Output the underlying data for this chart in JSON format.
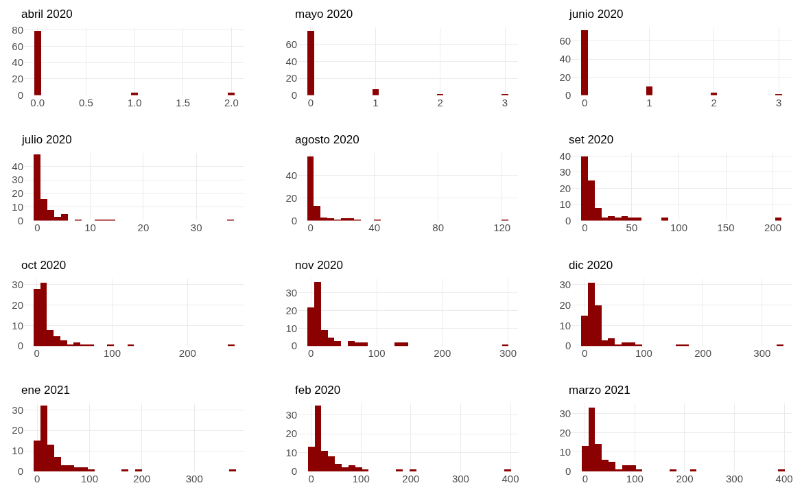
{
  "chart_data": [
    {
      "type": "histogram",
      "title": "abril 2020",
      "color": "#8b0000",
      "grid": true,
      "bins": [
        -0.035,
        0.035,
        0.965,
        1.035,
        1.965,
        2.035
      ],
      "values": [
        79,
        0,
        3,
        0,
        3
      ],
      "xlim": [
        -0.14,
        2.13
      ],
      "xticks": [
        {
          "value": 0,
          "label": "0.0"
        },
        {
          "value": 0.5,
          "label": "0.5"
        },
        {
          "value": 1,
          "label": "1.0"
        },
        {
          "value": 1.5,
          "label": "1.5"
        },
        {
          "value": 2,
          "label": "2.0"
        }
      ],
      "ylim": [
        0,
        83
      ],
      "yticks": [
        0,
        20,
        40,
        60,
        80
      ]
    },
    {
      "type": "histogram",
      "title": "mayo 2020",
      "color": "#8b0000",
      "grid": true,
      "bins": [
        -0.05,
        0.05,
        0.95,
        1.05,
        1.95,
        2.05,
        2.95,
        3.05
      ],
      "values": [
        76,
        0,
        7,
        0,
        1,
        0,
        1
      ],
      "xlim": [
        -0.2,
        3.2
      ],
      "xticks": [
        0,
        1,
        2,
        3
      ],
      "ylim": [
        0,
        80
      ],
      "yticks": [
        0,
        20,
        40,
        60
      ]
    },
    {
      "type": "histogram",
      "title": "junio 2020",
      "color": "#8b0000",
      "grid": true,
      "bins": [
        -0.05,
        0.05,
        0.95,
        1.05,
        1.95,
        2.05,
        2.95,
        3.05
      ],
      "values": [
        72,
        0,
        10,
        0,
        3,
        0,
        1
      ],
      "xlim": [
        -0.2,
        3.2
      ],
      "xticks": [
        0,
        1,
        2,
        3
      ],
      "ylim": [
        0,
        75
      ],
      "yticks": [
        0,
        20,
        40,
        60
      ]
    },
    {
      "type": "histogram",
      "title": "julio 2020",
      "color": "#8b0000",
      "grid": true,
      "bins": [
        -0.64,
        0.64,
        1.92,
        3.2,
        4.48,
        5.76,
        7.04,
        8.32,
        10.88,
        12.16,
        13.44,
        14.72,
        35.84,
        37.12
      ],
      "values": [
        49,
        16,
        8,
        3,
        5,
        0,
        1,
        0,
        1,
        1,
        1,
        0,
        1
      ],
      "xlim": [
        -2.5,
        39
      ],
      "xticks": [
        0,
        10,
        20,
        30
      ],
      "ylim": [
        0,
        50
      ],
      "yticks": [
        0,
        10,
        20,
        30,
        40
      ]
    },
    {
      "type": "histogram",
      "title": "agosto 2020",
      "color": "#8b0000",
      "grid": true,
      "bins": [
        -2.1,
        2.1,
        6.3,
        10.5,
        14.7,
        18.9,
        23.1,
        27.3,
        31.5,
        39.9,
        44.1,
        119.7,
        123.9
      ],
      "values": [
        57,
        13,
        3,
        2,
        1,
        2,
        2,
        1,
        0,
        1,
        0,
        1
      ],
      "xlim": [
        -8,
        130
      ],
      "xticks": [
        0,
        40,
        80,
        120
      ],
      "ylim": [
        0,
        60
      ],
      "yticks": [
        0,
        20,
        40
      ]
    },
    {
      "type": "histogram",
      "title": "set 2020",
      "color": "#8b0000",
      "grid": true,
      "bins": [
        -3.55,
        3.55,
        10.65,
        17.75,
        24.85,
        31.95,
        39.05,
        46.15,
        53.25,
        60.35,
        81.65,
        88.75,
        202.35,
        209.45
      ],
      "values": [
        40,
        25,
        8,
        2,
        3,
        2,
        3,
        2,
        2,
        0,
        2,
        0,
        2
      ],
      "xlim": [
        -14,
        220
      ],
      "xticks": [
        0,
        50,
        100,
        150,
        200
      ],
      "ylim": [
        0,
        42
      ],
      "yticks": [
        0,
        10,
        20,
        30,
        40
      ]
    },
    {
      "type": "histogram",
      "title": "oct 2020",
      "color": "#8b0000",
      "grid": true,
      "bins": [
        -4.45,
        4.45,
        13.35,
        22.25,
        31.15,
        40.05,
        48.95,
        57.85,
        66.75,
        75.65,
        93.45,
        102.35,
        120.15,
        129.05,
        253.55,
        262.45
      ],
      "values": [
        28,
        31,
        8,
        5,
        3,
        1,
        2,
        1,
        1,
        0,
        1,
        0,
        1,
        0,
        1
      ],
      "xlim": [
        -17,
        275
      ],
      "xticks": [
        0,
        100,
        200
      ],
      "ylim": [
        0,
        33
      ],
      "yticks": [
        0,
        10,
        20,
        30
      ]
    },
    {
      "type": "histogram",
      "title": "nov 2020",
      "color": "#8b0000",
      "grid": true,
      "bins": [
        -5.1,
        5.1,
        15.3,
        25.5,
        35.7,
        45.9,
        56.1,
        66.3,
        76.5,
        86.7,
        127.5,
        137.7,
        147.9,
        290.7,
        300.9
      ],
      "values": [
        22,
        36,
        9,
        5,
        3,
        0,
        3,
        2,
        2,
        0,
        2,
        2,
        0,
        1
      ],
      "xlim": [
        -20,
        315
      ],
      "xticks": [
        0,
        100,
        200,
        300
      ],
      "ylim": [
        0,
        38
      ],
      "yticks": [
        0,
        10,
        20,
        30
      ]
    },
    {
      "type": "histogram",
      "title": "dic 2020",
      "color": "#8b0000",
      "grid": true,
      "bins": [
        -5.7,
        5.7,
        17.1,
        28.5,
        39.9,
        51.3,
        62.7,
        74.1,
        85.5,
        96.9,
        153.9,
        165.3,
        176.7,
        324.9,
        336.3
      ],
      "values": [
        15,
        31,
        20,
        3,
        4,
        1,
        2,
        2,
        1,
        0,
        1,
        1,
        0,
        1
      ],
      "xlim": [
        -22,
        350
      ],
      "xticks": [
        0,
        100,
        200,
        300
      ],
      "ylim": [
        0,
        33
      ],
      "yticks": [
        0,
        10,
        20,
        30
      ]
    },
    {
      "type": "histogram",
      "title": "ene 2021",
      "color": "#8b0000",
      "grid": true,
      "bins": [
        -6.45,
        6.45,
        19.35,
        32.25,
        45.15,
        58.05,
        70.95,
        83.85,
        96.75,
        109.65,
        161.25,
        174.15,
        187.05,
        199.95,
        367.05,
        379.95
      ],
      "values": [
        15,
        32,
        13,
        7,
        3,
        3,
        2,
        2,
        1,
        0,
        1,
        0,
        1,
        0,
        1
      ],
      "xlim": [
        -25,
        395
      ],
      "xticks": [
        0,
        100,
        200,
        300
      ],
      "ylim": [
        0,
        33
      ],
      "yticks": [
        0,
        10,
        20,
        30
      ]
    },
    {
      "type": "histogram",
      "title": "feb 2020",
      "color": "#8b0000",
      "grid": true,
      "bins": [
        -6.8,
        6.8,
        20.4,
        34,
        47.6,
        61.2,
        74.8,
        88.4,
        102,
        115.6,
        170,
        183.6,
        197.2,
        210.8,
        387.6,
        401.2
      ],
      "values": [
        13,
        35,
        11,
        8,
        4,
        2,
        3,
        2,
        1,
        0,
        1,
        0,
        1,
        0,
        1
      ],
      "xlim": [
        -27,
        415
      ],
      "xticks": [
        0,
        100,
        200,
        300,
        400
      ],
      "ylim": [
        0,
        36
      ],
      "yticks": [
        0,
        10,
        20,
        30
      ]
    },
    {
      "type": "histogram",
      "title": "marzo 2021",
      "color": "#8b0000",
      "grid": true,
      "bins": [
        -6.8,
        6.8,
        20.4,
        34,
        47.6,
        61.2,
        74.8,
        88.4,
        102,
        115.6,
        170,
        183.6,
        210.8,
        224.4,
        387.6,
        401.2
      ],
      "values": [
        13,
        33,
        14,
        6,
        5,
        1,
        3,
        3,
        1,
        0,
        1,
        0,
        1,
        0,
        1
      ],
      "xlim": [
        -27,
        415
      ],
      "xticks": [
        0,
        100,
        200,
        300,
        400
      ],
      "ylim": [
        0,
        35
      ],
      "yticks": [
        0,
        10,
        20,
        30
      ]
    }
  ]
}
